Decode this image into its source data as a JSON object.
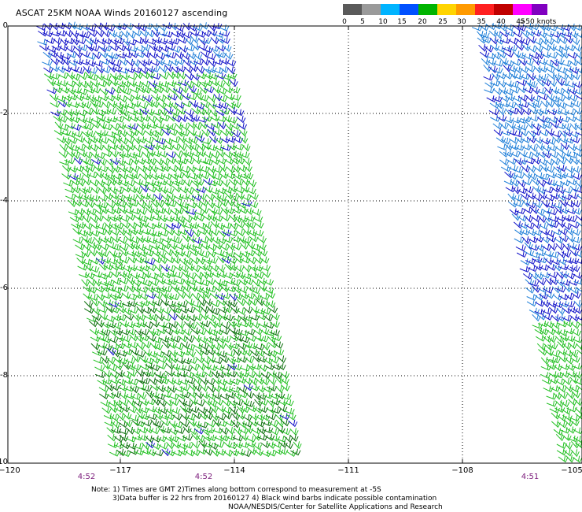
{
  "title": "ASCAT 25KM NOAA Winds 20160127 ascending",
  "legend": {
    "labels": [
      "0",
      "5",
      "10",
      "15",
      "20",
      "25",
      "30",
      "35",
      "40",
      "45",
      ">50 knots"
    ],
    "colors": [
      "#5a5a5a",
      "#9a9a9a",
      "#00b4ff",
      "#0050ff",
      "#00b400",
      "#ffd400",
      "#ff9a00",
      "#ff2020",
      "#c00000",
      "#ff00ff",
      "#8000c0"
    ]
  },
  "axes": {
    "y_ticks": [
      "0",
      "-2",
      "-4",
      "-6",
      "-8",
      "-10"
    ],
    "x_ticks": [
      "-120",
      "-117",
      "-114",
      "-111",
      "-108",
      "-105"
    ],
    "x_ticks_display": [
      "−120",
      "−117",
      "−114",
      "−111",
      "−108",
      "−105"
    ]
  },
  "times": [
    "4:52",
    "4:52",
    "4:51"
  ],
  "notes": {
    "line1": "Note: 1) Times are GMT 2)Times along bottom correspond to measurement at -5S",
    "line2": "3)Data buffer is 22 hrs from 20160127 4) Black wind barbs indicate possible contamination",
    "line3": "NOAA/NESDIS/Center for Satellite Applications and Research"
  },
  "colors": {
    "barb_blue_light": "#1f7fd8",
    "barb_blue_dark": "#1010c8",
    "barb_green": "#22c022",
    "barb_green_dark": "#0a6e0a",
    "grid": "#000000",
    "time_label": "#7a1a7a"
  }
}
